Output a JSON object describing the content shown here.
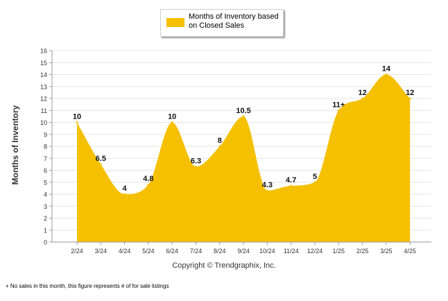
{
  "legend": {
    "label": "Months of Inventory based on Closed Sales"
  },
  "copyright": "Copyright © Trendgraphix, Inc.",
  "footnote": "+ No sales in this month, this figure represents # of for sale listings",
  "colors": {
    "area": "#f5c000",
    "grid": "#e6e6e6",
    "axis": "#999999"
  },
  "chart_data": {
    "type": "area",
    "categories": [
      "2/24",
      "3/24",
      "4/24",
      "5/24",
      "6/24",
      "7/24",
      "8/24",
      "9/24",
      "10/24",
      "11/24",
      "12/24",
      "1/25",
      "2/25",
      "3/25",
      "4/25"
    ],
    "series": [
      {
        "name": "Months of Inventory based on Closed Sales",
        "values": [
          10,
          6.5,
          4,
          4.8,
          10,
          6.3,
          8,
          10.5,
          4.3,
          4.7,
          5,
          11,
          12,
          14,
          12
        ]
      }
    ],
    "data_labels": [
      "10",
      "6.5",
      "4",
      "4.8",
      "10",
      "6.3",
      "8",
      "10.5",
      "4.3",
      "4.7",
      "5",
      "11+",
      "12",
      "14",
      "12"
    ],
    "ylabel": "Months of Inventory",
    "xlabel": "",
    "ylim": [
      0,
      16
    ],
    "yticks": [
      "0",
      "1",
      "2",
      "3",
      "4",
      "5",
      "6",
      "7",
      "8",
      "9",
      "10",
      "11",
      "12",
      "13",
      "14",
      "15",
      "16"
    ],
    "grid": true,
    "legend_position": "top-center"
  }
}
